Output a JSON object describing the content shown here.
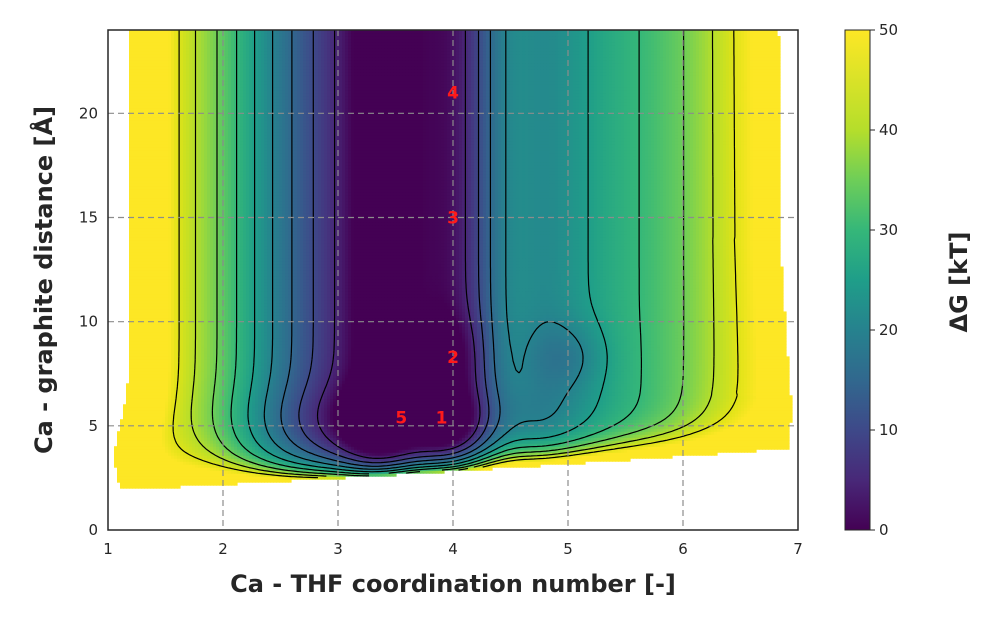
{
  "chart_data": {
    "type": "heatmap",
    "title": "",
    "xlabel": "Ca - THF coordination number [-]",
    "ylabel": "Ca - graphite distance [Å]",
    "xlim": [
      1,
      7
    ],
    "ylim": [
      0,
      24
    ],
    "xticks": [
      1,
      2,
      3,
      4,
      5,
      6,
      7
    ],
    "yticks": [
      0,
      5,
      10,
      15,
      20
    ],
    "grid": "dashed gray",
    "colorbar": {
      "label": "ΔG [kT]",
      "colormap": "viridis",
      "range": [
        0,
        50
      ],
      "ticks": [
        0,
        10,
        20,
        30,
        40,
        50
      ]
    },
    "contour_levels_kT": [
      5,
      10,
      15,
      20,
      25,
      30,
      35,
      40,
      45
    ],
    "minima": [
      {
        "label": "1",
        "x": 3.9,
        "y": 5.4
      },
      {
        "label": "2",
        "x": 4.0,
        "y": 8.3
      },
      {
        "label": "3",
        "x": 4.0,
        "y": 15.0
      },
      {
        "label": "4",
        "x": 4.0,
        "y": 21.0
      },
      {
        "label": "5",
        "x": 3.55,
        "y": 5.4
      }
    ],
    "colors": {
      "low": "#440154",
      "mid": "#21918c",
      "high": "#fde725",
      "contour": "#000000",
      "region_label": "#ff1a1a"
    }
  }
}
